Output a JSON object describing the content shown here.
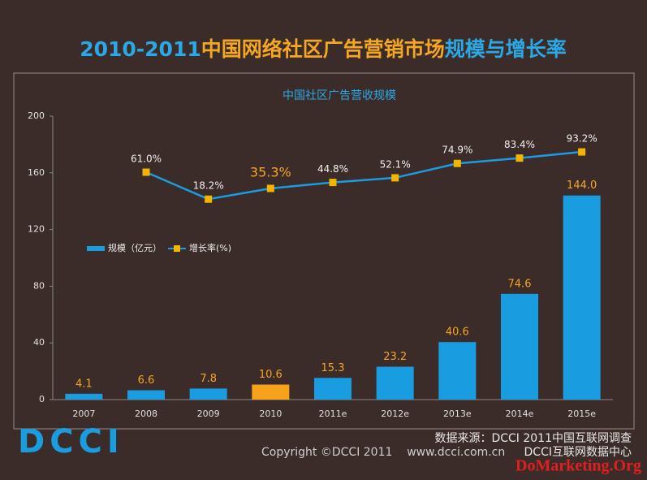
{
  "chart_data": {
    "type": "bar",
    "title_parts": [
      {
        "text": "2010-2011",
        "color": "#29a9e6"
      },
      {
        "text": "中国网络社区广告营销市场",
        "color": "#f5a623"
      },
      {
        "text": "规模与增长率",
        "color": "#29a9e6"
      }
    ],
    "subtitle": "中国社区广告营收规模",
    "categories": [
      "2007",
      "2008",
      "2009",
      "2010",
      "2011e",
      "2012e",
      "2013e",
      "2014e",
      "2015e"
    ],
    "series": [
      {
        "name": "规模（亿元）",
        "type": "bar",
        "color": "#1a9de0",
        "highlight_color": "#f7a21b",
        "highlight_index": 3,
        "values": [
          4.1,
          6.6,
          7.8,
          10.6,
          15.3,
          23.2,
          40.6,
          74.6,
          144.0
        ],
        "value_labels": [
          "4.1",
          "6.6",
          "7.8",
          "10.6",
          "15.3",
          "23.2",
          "40.6",
          "74.6",
          "144.0"
        ]
      },
      {
        "name": "增长率(%)",
        "type": "line",
        "axis": "y2",
        "color": "#1a9de0",
        "marker_color": "#f5b400",
        "values": [
          null,
          61.0,
          18.2,
          35.3,
          44.8,
          52.1,
          74.9,
          83.4,
          93.2
        ],
        "value_labels": [
          null,
          "61.0%",
          "18.2%",
          "35.3%",
          "44.8%",
          "52.1%",
          "74.9%",
          "83.4%",
          "93.2%"
        ]
      }
    ],
    "ylim": [
      0,
      200
    ],
    "yticks": [
      0,
      40,
      80,
      120,
      160,
      200
    ],
    "y2lim": [
      -300,
      150
    ],
    "footer": {
      "logo": "DCCI",
      "source": "数据来源：DCCI 2011中国互联网调查",
      "copyright": "Copyright ©DCCI 2011    www.dcci.com.cn",
      "org": "DCCI互联网数据中心",
      "watermark": "DoMarketing.Org"
    }
  }
}
